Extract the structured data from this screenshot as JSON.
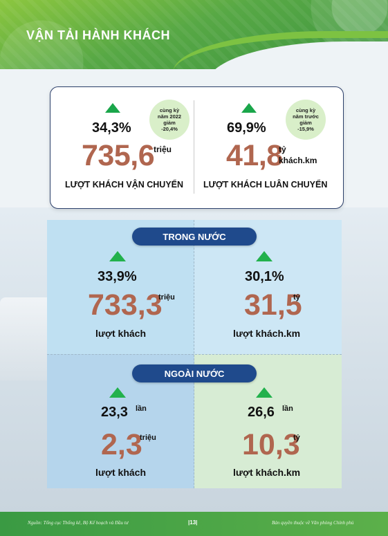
{
  "header": {
    "title": "VẬN TẢI HÀNH KHÁCH"
  },
  "summary": {
    "left": {
      "pct": "34,3%",
      "value": "735,6",
      "unit": "triệu",
      "caption": "LƯỢT KHÁCH VẬN CHUYỂN",
      "bubble": [
        "cùng kỳ",
        "năm 2022",
        "giảm",
        "-20,4%"
      ]
    },
    "right": {
      "pct": "69,9%",
      "value": "41,8",
      "unit_line1": "tỷ",
      "unit_line2": "khách.km",
      "caption": "LƯỢT KHÁCH LUÂN CHUYỂN",
      "bubble": [
        "cùng kỳ",
        "năm trước",
        "giảm",
        "-15,9%"
      ]
    }
  },
  "domestic": {
    "label": "TRONG NƯỚC",
    "left": {
      "pct": "33,9%",
      "value": "733,3",
      "unit": "triệu",
      "caption": "lượt khách"
    },
    "right": {
      "pct": "30,1%",
      "value": "31,5",
      "unit": "tỷ",
      "caption": "lượt khách.km"
    }
  },
  "international": {
    "label": "NGOÀI NƯỚC",
    "left": {
      "pct": "23,3",
      "pct_unit": "lần",
      "value": "2,3",
      "unit": "triệu",
      "caption": "lượt khách"
    },
    "right": {
      "pct": "26,6",
      "pct_unit": "lần",
      "value": "10,3",
      "unit": "tỷ",
      "caption": "lượt khách.km"
    }
  },
  "footer": {
    "source": "Nguồn: Tổng cục Thống kê, Bộ Kế hoạch và Đầu tư",
    "page": "|13|",
    "copyright": "Bản quyền thuộc về Văn phòng Chính phủ"
  },
  "colors": {
    "accent_green": "#1aa64a",
    "value_brown": "#b0664f",
    "pill_blue": "#1f4a8c"
  }
}
